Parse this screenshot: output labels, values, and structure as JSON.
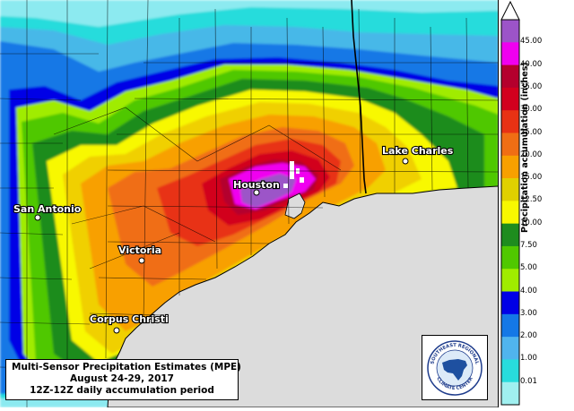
{
  "title_box": {
    "line1": "Multi-Sensor Precipitation Estimates (MPE)",
    "line2": "August 24-29, 2017",
    "line3": "12Z-12Z daily accumulation period"
  },
  "cities": [
    {
      "name": "Houston",
      "id": "houston"
    },
    {
      "name": "Lake Charles",
      "id": "lake-charles"
    },
    {
      "name": "San Antonio",
      "id": "san-antonio"
    },
    {
      "name": "Victoria",
      "id": "victoria"
    },
    {
      "name": "Corpus Christi",
      "id": "corpus-christi"
    }
  ],
  "legend": {
    "title": "Precipitation accumulation (inches)",
    "ticks": [
      "45.00",
      "40.00",
      "35.00",
      "30.00",
      "25.00",
      "20.00",
      "15.00",
      "12.50",
      "10.00",
      "7.50",
      "5.00",
      "4.00",
      "3.00",
      "2.00",
      "1.00",
      "0.01"
    ],
    "colors": [
      "#9c54c8",
      "#f000f0",
      "#b4002d",
      "#d2001e",
      "#e83214",
      "#f06e14",
      "#f8a000",
      "#e0d000",
      "#f8f800",
      "#1e8c1e",
      "#50c800",
      "#a0ec00",
      "#0000e6",
      "#1478e6",
      "#50b4ee",
      "#28dcdc",
      "#a0f0f0"
    ]
  },
  "logo": {
    "top_text": "SOUTHEAST REGIONAL",
    "bottom_text": "CLIMATE CENTER"
  }
}
